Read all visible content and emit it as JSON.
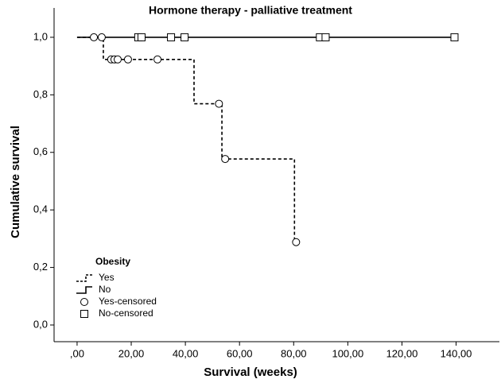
{
  "chart_data": {
    "type": "step",
    "title": "Hormone therapy - palliative treatment",
    "x_label": "Survival (weeks)",
    "y_label": "Cumulative survival",
    "xlim": [
      -8.5,
      156
    ],
    "ylim": [
      -0.058,
      1.102
    ],
    "xticks": [
      {
        "value": 0,
        "label": ",00"
      },
      {
        "value": 20,
        "label": "20,00"
      },
      {
        "value": 40,
        "label": "40,00"
      },
      {
        "value": 60,
        "label": "60,00"
      },
      {
        "value": 80,
        "label": "80,00"
      },
      {
        "value": 100,
        "label": "100,00"
      },
      {
        "value": 120,
        "label": "120,00"
      },
      {
        "value": 140,
        "label": "140,00"
      }
    ],
    "yticks": [
      {
        "value": 0,
        "label": "0,0"
      },
      {
        "value": 0.2,
        "label": "0,2"
      },
      {
        "value": 0.4,
        "label": "0,4"
      },
      {
        "value": 0.6,
        "label": "0,6"
      },
      {
        "value": 0.8,
        "label": "0,8"
      },
      {
        "value": 1,
        "label": "1,0"
      }
    ],
    "legend_title": "Obesity",
    "legend_position": "lower left",
    "series": [
      {
        "name": "Yes",
        "color": "#000000",
        "dash": true,
        "x": [
          0,
          9.7,
          43.2,
          53.5,
          80.3,
          80.9
        ],
        "values": [
          1,
          0.923,
          0.769,
          0.577,
          0.288,
          0.288
        ]
      },
      {
        "name": "No",
        "color": "#000000",
        "dash": false,
        "x": [
          0,
          139.4
        ],
        "values": [
          1,
          1
        ]
      }
    ],
    "censored": [
      {
        "name": "Yes-censored",
        "marker": "circle",
        "x": [
          6.2,
          9.1,
          12.6,
          13.8,
          15,
          18.8,
          29.7,
          52.4,
          54.7,
          80.9
        ],
        "values": [
          1,
          1,
          0.923,
          0.923,
          0.923,
          0.923,
          0.923,
          0.769,
          0.577,
          0.288
        ]
      },
      {
        "name": "No-censored",
        "marker": "square",
        "x": [
          22.6,
          23.8,
          34.7,
          39.7,
          89.7,
          91.8,
          139.4
        ],
        "values": [
          1,
          1,
          1,
          1,
          1,
          1,
          1
        ]
      }
    ]
  }
}
